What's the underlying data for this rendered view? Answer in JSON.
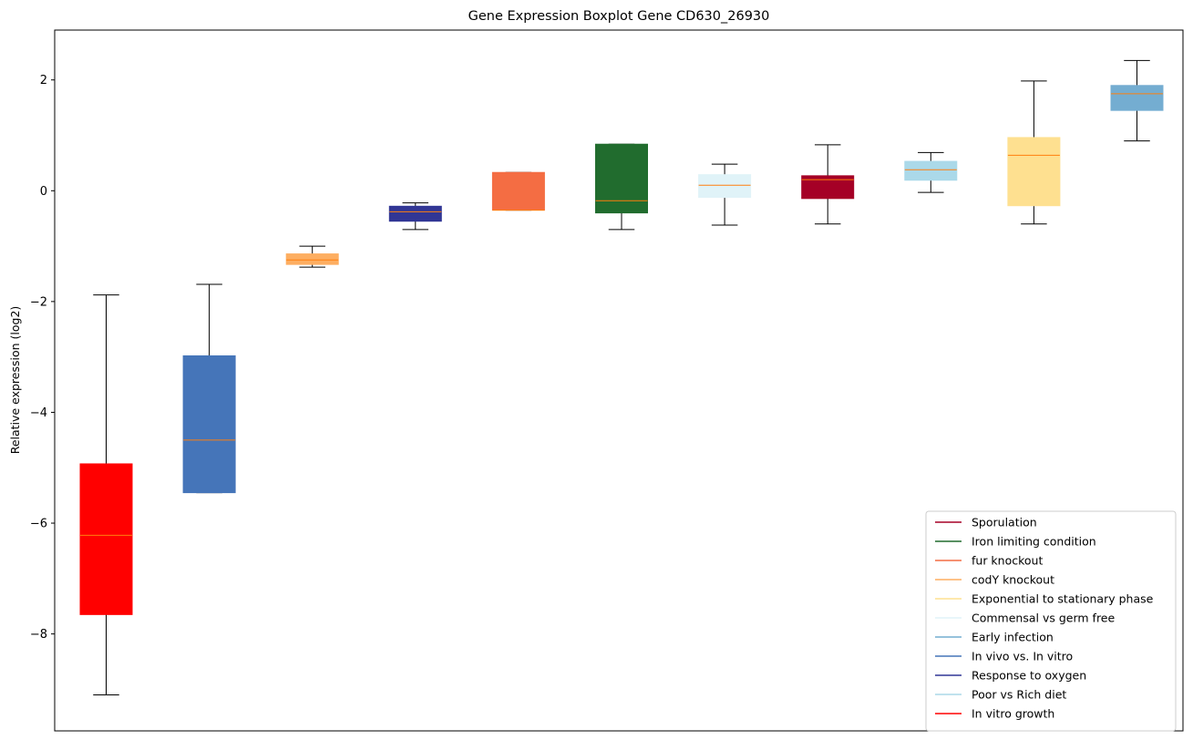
{
  "chart_data": {
    "type": "boxplot",
    "title": "Gene Expression Boxplot Gene CD630_26930",
    "xlabel": "",
    "ylabel": "Relative expression (log2)",
    "ylim": [
      -9.75,
      2.9
    ],
    "yticks": [
      -8,
      -6,
      -4,
      -2,
      0,
      2
    ],
    "ytick_labels": [
      "−8",
      "−6",
      "−4",
      "−2",
      "0",
      "2"
    ],
    "grid": false,
    "legend_position": "lower-right",
    "median_color": "#ff7f0e",
    "boxes": [
      {
        "name": "In vitro growth",
        "color": "#ff0000",
        "whislo": -9.1,
        "q1": -7.65,
        "med": -6.22,
        "q3": -4.93,
        "whishi": -1.88
      },
      {
        "name": "In vivo vs. In vitro",
        "color": "#4575b9",
        "whislo": -5.45,
        "q1": -5.45,
        "med": -4.5,
        "q3": -2.98,
        "whishi": -1.69
      },
      {
        "name": "codY knockout",
        "color": "#fdae61",
        "whislo": -1.38,
        "q1": -1.33,
        "med": -1.25,
        "q3": -1.14,
        "whishi": -1.0
      },
      {
        "name": "Response to oxygen",
        "color": "#313695",
        "whislo": -0.7,
        "q1": -0.55,
        "med": -0.38,
        "q3": -0.28,
        "whishi": -0.22
      },
      {
        "name": "fur knockout",
        "color": "#f46d43",
        "whislo": -0.35,
        "q1": -0.35,
        "med": -0.35,
        "q3": 0.33,
        "whishi": 0.33
      },
      {
        "name": "Iron limiting condition",
        "color": "#216c2e",
        "whislo": -0.7,
        "q1": -0.4,
        "med": -0.18,
        "q3": 0.84,
        "whishi": 0.84
      },
      {
        "name": "Commensal vs germ free",
        "color": "#e0f3f8",
        "whislo": -0.62,
        "q1": -0.12,
        "med": 0.1,
        "q3": 0.29,
        "whishi": 0.48
      },
      {
        "name": "Sporulation",
        "color": "#a50026",
        "whislo": -0.6,
        "q1": -0.14,
        "med": 0.2,
        "q3": 0.27,
        "whishi": 0.83
      },
      {
        "name": "Poor vs Rich diet",
        "color": "#abd9e9",
        "whislo": -0.03,
        "q1": 0.19,
        "med": 0.38,
        "q3": 0.53,
        "whishi": 0.69
      },
      {
        "name": "Exponential to stationary phase",
        "color": "#fee090",
        "whislo": -0.6,
        "q1": -0.27,
        "med": 0.64,
        "q3": 0.96,
        "whishi": 1.98
      },
      {
        "name": "Early infection",
        "color": "#74add1",
        "whislo": 0.9,
        "q1": 1.45,
        "med": 1.75,
        "q3": 1.9,
        "whishi": 2.35
      }
    ],
    "legend": [
      {
        "label": "Sporulation",
        "color": "#a50026"
      },
      {
        "label": "Iron limiting condition",
        "color": "#216c2e"
      },
      {
        "label": "fur knockout",
        "color": "#f46d43"
      },
      {
        "label": "codY knockout",
        "color": "#fdae61"
      },
      {
        "label": "Exponential to stationary phase",
        "color": "#fee090"
      },
      {
        "label": "Commensal vs germ free",
        "color": "#e0f3f8"
      },
      {
        "label": "Early infection",
        "color": "#74add1"
      },
      {
        "label": "In vivo vs. In vitro",
        "color": "#4575b9"
      },
      {
        "label": "Response to oxygen",
        "color": "#313695"
      },
      {
        "label": "Poor vs Rich diet",
        "color": "#abd9e9"
      },
      {
        "label": "In vitro growth",
        "color": "#ff0000"
      }
    ]
  }
}
